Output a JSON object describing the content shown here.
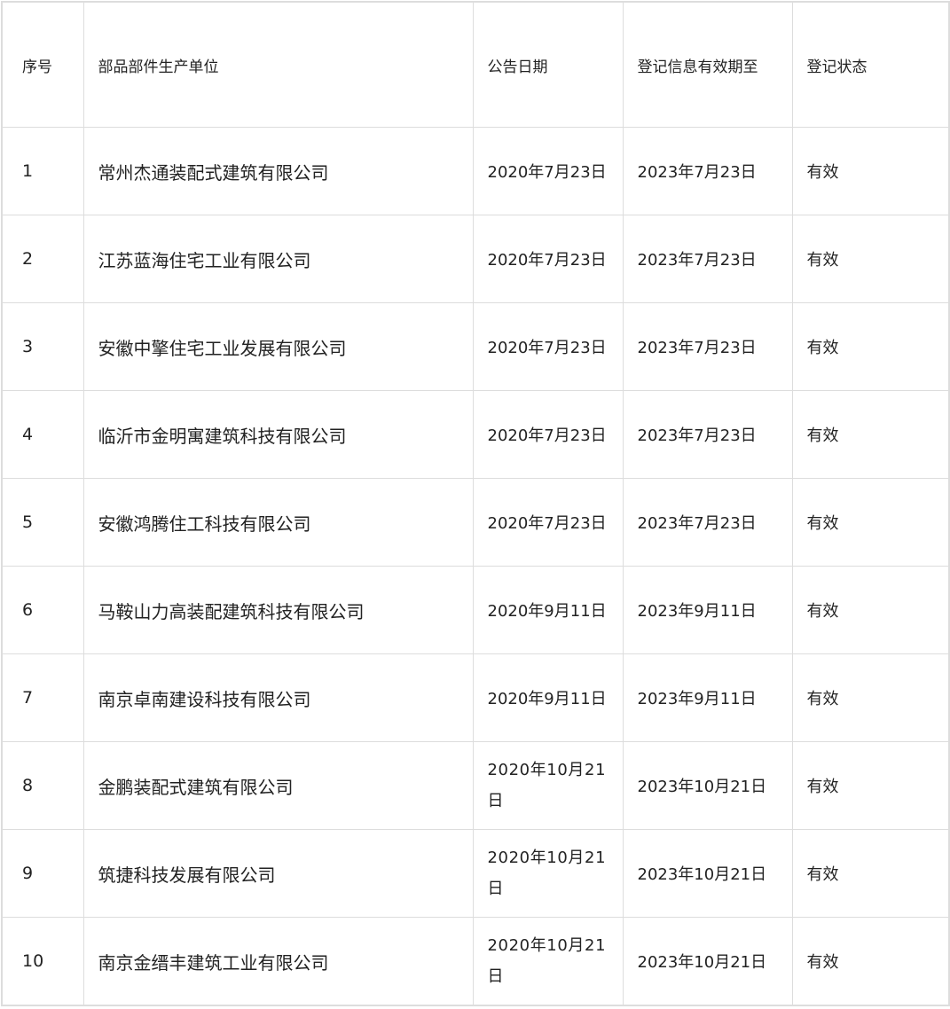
{
  "table": {
    "headers": [
      "序号",
      "部品部件生产单位",
      "公告日期",
      "登记信息有效期至",
      "登记状态"
    ],
    "rows": [
      [
        "1",
        "常州杰通装配式建筑有限公司",
        "2020年7月23日",
        "2023年7月23日",
        "有效"
      ],
      [
        "2",
        "江苏蓝海住宅工业有限公司",
        "2020年7月23日",
        "2023年7月23日",
        "有效"
      ],
      [
        "3",
        "安徽中擎住宅工业发展有限公司",
        "2020年7月23日",
        "2023年7月23日",
        "有效"
      ],
      [
        "4",
        "临沂市金明寓建筑科技有限公司",
        "2020年7月23日",
        "2023年7月23日",
        "有效"
      ],
      [
        "5",
        "安徽鸿腾住工科技有限公司",
        "2020年7月23日",
        "2023年7月23日",
        "有效"
      ],
      [
        "6",
        "马鞍山力高装配建筑科技有限公司",
        "2020年9月11日",
        "2023年9月11日",
        "有效"
      ],
      [
        "7",
        "南京卓南建设科技有限公司",
        "2020年9月11日",
        "2023年9月11日",
        "有效"
      ],
      [
        "8",
        "金鹏装配式建筑有限公司",
        "2020年10月21日",
        "2023年10月21日",
        "有效"
      ],
      [
        "9",
        "筑捷科技发展有限公司",
        "2020年10月21日",
        "2023年10月21日",
        "有效"
      ],
      [
        "10",
        "南京金缙丰建筑工业有限公司",
        "2020年10月21日",
        "2023年10月21日",
        "有效"
      ]
    ]
  }
}
